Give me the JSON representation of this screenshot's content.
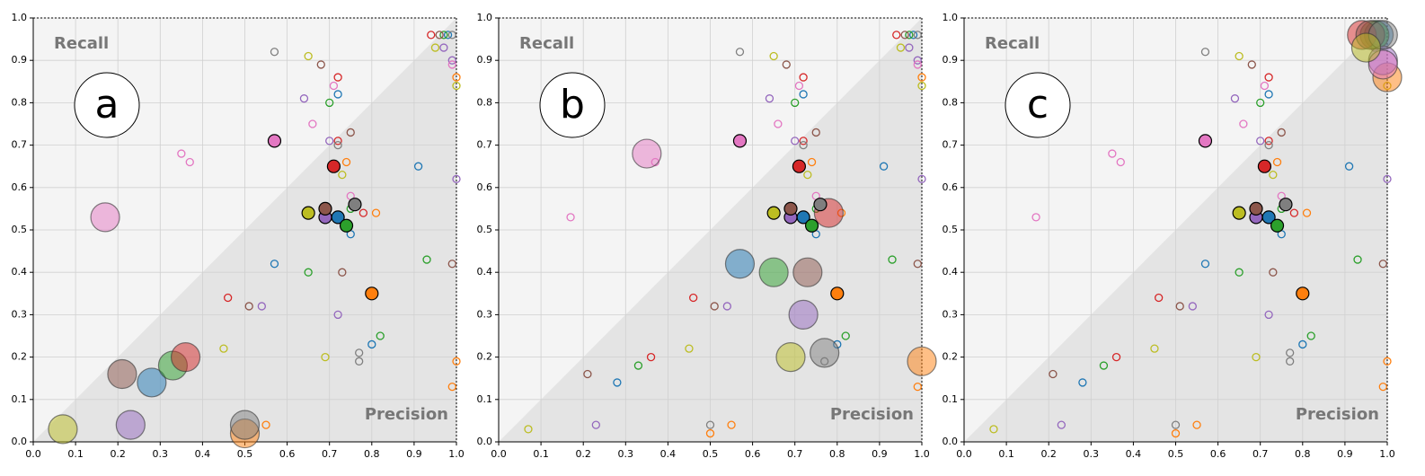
{
  "chart_data": [
    {
      "type": "scatter",
      "label": "a",
      "annotations": [
        "Recall",
        "Precision"
      ],
      "xlim": [
        0,
        1
      ],
      "ylim": [
        0,
        1
      ],
      "xticks": [
        {
          "value": 0,
          "label": "0.0"
        },
        0.1,
        0.2,
        0.3,
        0.4,
        0.5,
        0.6,
        0.7,
        0.8,
        0.9,
        {
          "value": 1,
          "label": "1.0"
        }
      ],
      "yticks": [
        {
          "value": 0,
          "label": "0.0"
        },
        0.1,
        0.2,
        0.3,
        0.4,
        0.5,
        0.6,
        0.7,
        0.8,
        0.9,
        {
          "value": 1,
          "label": "1.0"
        }
      ],
      "grid": true,
      "x": [
        0.57,
        0.65,
        0.68,
        0.72,
        0.71,
        0.72,
        0.7,
        0.64,
        0.66,
        0.75,
        0.7,
        0.72,
        0.72,
        0.37,
        0.74,
        0.73,
        0.91,
        0.75,
        0.81,
        0.75,
        0.75,
        1.0,
        0.93,
        0.99,
        0.46,
        0.51,
        0.54,
        0.45,
        0.77,
        0.8,
        0.82,
        0.99,
        0.55,
        0.97,
        1.0,
        0.28,
        0.5,
        0.33,
        0.36,
        0.23,
        0.21,
        0.17,
        0.5,
        0.07,
        0.57,
        1.0,
        0.65,
        0.78,
        0.72,
        0.73,
        0.35,
        0.77,
        0.69,
        0.98,
        1.0,
        0.97,
        0.94,
        0.99,
        0.96,
        0.99,
        0.99,
        0.95,
        0.72,
        0.8,
        0.74,
        0.71,
        0.69,
        0.69,
        0.57,
        0.76,
        0.65
      ],
      "y": [
        0.92,
        0.91,
        0.89,
        0.86,
        0.84,
        0.82,
        0.8,
        0.81,
        0.75,
        0.73,
        0.71,
        0.71,
        0.7,
        0.66,
        0.66,
        0.63,
        0.65,
        0.58,
        0.54,
        0.55,
        0.49,
        0.62,
        0.43,
        0.42,
        0.34,
        0.32,
        0.32,
        0.22,
        0.19,
        0.23,
        0.25,
        0.13,
        0.04,
        0.93,
        0.84,
        0.14,
        0.02,
        0.18,
        0.2,
        0.04,
        0.16,
        0.53,
        0.04,
        0.03,
        0.42,
        0.19,
        0.4,
        0.54,
        0.3,
        0.4,
        0.68,
        0.21,
        0.2,
        0.96,
        0.86,
        0.96,
        0.96,
        0.9,
        0.96,
        0.89,
        0.96,
        0.93,
        0.53,
        0.35,
        0.51,
        0.65,
        0.53,
        0.55,
        0.71,
        0.56,
        0.54
      ],
      "sizes": [
        4,
        4,
        4,
        4,
        4,
        4,
        4,
        4,
        4,
        4,
        4,
        4,
        4,
        4,
        4,
        4,
        4,
        4,
        4,
        4,
        4,
        4,
        4,
        4,
        4,
        4,
        4,
        4,
        4,
        4,
        4,
        4,
        4,
        4,
        4,
        16,
        16,
        16,
        16,
        16,
        16,
        16,
        16,
        16,
        4,
        4,
        4,
        4,
        4,
        4,
        4,
        4,
        4,
        4,
        4,
        4,
        4,
        4,
        4,
        4,
        4,
        4,
        7,
        7,
        7,
        7,
        7,
        7,
        7,
        7,
        7
      ],
      "colors": [
        "#7f7f7f",
        "#bcbd22",
        "#8c564b",
        "#d62728",
        "#e377c2",
        "#1f77b4",
        "#2ca02c",
        "#9467bd",
        "#e377c2",
        "#8c564b",
        "#9467bd",
        "#d62728",
        "#7f7f7f",
        "#e377c2",
        "#ff7f0e",
        "#bcbd22",
        "#1f77b4",
        "#e377c2",
        "#ff7f0e",
        "#2ca02c",
        "#1f77b4",
        "#9467bd",
        "#2ca02c",
        "#8c564b",
        "#d62728",
        "#8c564b",
        "#9467bd",
        "#bcbd22",
        "#7f7f7f",
        "#1f77b4",
        "#2ca02c",
        "#ff7f0e",
        "#ff7f0e",
        "#9467bd",
        "#bcbd22",
        "#1f77b4",
        "#ff7f0e",
        "#2ca02c",
        "#d62728",
        "#9467bd",
        "#8c564b",
        "#e377c2",
        "#7f7f7f",
        "#bcbd22",
        "#1f77b4",
        "#ff7f0e",
        "#2ca02c",
        "#d62728",
        "#9467bd",
        "#8c564b",
        "#e377c2",
        "#7f7f7f",
        "#bcbd22",
        "#1f77b4",
        "#ff7f0e",
        "#2ca02c",
        "#d62728",
        "#9467bd",
        "#8c564b",
        "#e377c2",
        "#7f7f7f",
        "#bcbd22",
        "#1f77b4",
        "#ff7f0e",
        "#2ca02c",
        "#d62728",
        "#9467bd",
        "#8c564b",
        "#e377c2",
        "#7f7f7f",
        "#bcbd22"
      ]
    },
    {
      "type": "scatter",
      "label": "b",
      "annotations": [
        "Recall",
        "Precision"
      ],
      "xlim": [
        0,
        1
      ],
      "ylim": [
        0,
        1
      ],
      "xticks": [
        {
          "value": 0,
          "label": "0.0"
        },
        0.1,
        0.2,
        0.3,
        0.4,
        0.5,
        0.6,
        0.7,
        0.8,
        0.9,
        {
          "value": 1,
          "label": "1.0"
        }
      ],
      "yticks": [
        {
          "value": 0,
          "label": "0.0"
        },
        0.1,
        0.2,
        0.3,
        0.4,
        0.5,
        0.6,
        0.7,
        0.8,
        0.9,
        {
          "value": 1,
          "label": "1.0"
        }
      ],
      "grid": true,
      "x": [
        0.57,
        0.65,
        0.68,
        0.72,
        0.71,
        0.72,
        0.7,
        0.64,
        0.66,
        0.75,
        0.7,
        0.72,
        0.72,
        0.37,
        0.74,
        0.73,
        0.91,
        0.75,
        0.81,
        0.75,
        0.75,
        1.0,
        0.93,
        0.99,
        0.46,
        0.51,
        0.54,
        0.45,
        0.77,
        0.8,
        0.82,
        0.99,
        0.55,
        0.97,
        1.0,
        0.28,
        0.5,
        0.33,
        0.36,
        0.23,
        0.21,
        0.17,
        0.5,
        0.07,
        0.57,
        1.0,
        0.65,
        0.78,
        0.72,
        0.73,
        0.35,
        0.77,
        0.69,
        0.98,
        1.0,
        0.97,
        0.94,
        0.99,
        0.96,
        0.99,
        0.99,
        0.95,
        0.72,
        0.8,
        0.74,
        0.71,
        0.69,
        0.69,
        0.57,
        0.76,
        0.65
      ],
      "y": [
        0.92,
        0.91,
        0.89,
        0.86,
        0.84,
        0.82,
        0.8,
        0.81,
        0.75,
        0.73,
        0.71,
        0.71,
        0.7,
        0.66,
        0.66,
        0.63,
        0.65,
        0.58,
        0.54,
        0.55,
        0.49,
        0.62,
        0.43,
        0.42,
        0.34,
        0.32,
        0.32,
        0.22,
        0.19,
        0.23,
        0.25,
        0.13,
        0.04,
        0.93,
        0.84,
        0.14,
        0.02,
        0.18,
        0.2,
        0.04,
        0.16,
        0.53,
        0.04,
        0.03,
        0.42,
        0.19,
        0.4,
        0.54,
        0.3,
        0.4,
        0.68,
        0.21,
        0.2,
        0.96,
        0.86,
        0.96,
        0.96,
        0.9,
        0.96,
        0.89,
        0.96,
        0.93,
        0.53,
        0.35,
        0.51,
        0.65,
        0.53,
        0.55,
        0.71,
        0.56,
        0.54
      ],
      "sizes": [
        4,
        4,
        4,
        4,
        4,
        4,
        4,
        4,
        4,
        4,
        4,
        4,
        4,
        4,
        4,
        4,
        4,
        4,
        4,
        4,
        4,
        4,
        4,
        4,
        4,
        4,
        4,
        4,
        4,
        4,
        4,
        4,
        4,
        4,
        4,
        4,
        4,
        4,
        4,
        4,
        4,
        4,
        4,
        4,
        16,
        16,
        16,
        16,
        16,
        16,
        16,
        16,
        16,
        4,
        4,
        4,
        4,
        4,
        4,
        4,
        4,
        4,
        7,
        7,
        7,
        7,
        7,
        7,
        7,
        7,
        7
      ],
      "colors": [
        "#7f7f7f",
        "#bcbd22",
        "#8c564b",
        "#d62728",
        "#e377c2",
        "#1f77b4",
        "#2ca02c",
        "#9467bd",
        "#e377c2",
        "#8c564b",
        "#9467bd",
        "#d62728",
        "#7f7f7f",
        "#e377c2",
        "#ff7f0e",
        "#bcbd22",
        "#1f77b4",
        "#e377c2",
        "#ff7f0e",
        "#2ca02c",
        "#1f77b4",
        "#9467bd",
        "#2ca02c",
        "#8c564b",
        "#d62728",
        "#8c564b",
        "#9467bd",
        "#bcbd22",
        "#7f7f7f",
        "#1f77b4",
        "#2ca02c",
        "#ff7f0e",
        "#ff7f0e",
        "#9467bd",
        "#bcbd22",
        "#1f77b4",
        "#ff7f0e",
        "#2ca02c",
        "#d62728",
        "#9467bd",
        "#8c564b",
        "#e377c2",
        "#7f7f7f",
        "#bcbd22",
        "#1f77b4",
        "#ff7f0e",
        "#2ca02c",
        "#d62728",
        "#9467bd",
        "#8c564b",
        "#e377c2",
        "#7f7f7f",
        "#bcbd22",
        "#1f77b4",
        "#ff7f0e",
        "#2ca02c",
        "#d62728",
        "#9467bd",
        "#8c564b",
        "#e377c2",
        "#7f7f7f",
        "#bcbd22",
        "#1f77b4",
        "#ff7f0e",
        "#2ca02c",
        "#d62728",
        "#9467bd",
        "#8c564b",
        "#e377c2",
        "#7f7f7f",
        "#bcbd22"
      ]
    },
    {
      "type": "scatter",
      "label": "c",
      "annotations": [
        "Recall",
        "Precision"
      ],
      "xlim": [
        0,
        1
      ],
      "ylim": [
        0,
        1
      ],
      "xticks": [
        {
          "value": 0,
          "label": "0.0"
        },
        0.1,
        0.2,
        0.3,
        0.4,
        0.5,
        0.6,
        0.7,
        0.8,
        0.9,
        {
          "value": 1,
          "label": "1.0"
        }
      ],
      "yticks": [
        {
          "value": 0,
          "label": "0.0"
        },
        0.1,
        0.2,
        0.3,
        0.4,
        0.5,
        0.6,
        0.7,
        0.8,
        0.9,
        {
          "value": 1,
          "label": "1.0"
        }
      ],
      "grid": true,
      "x": [
        0.57,
        0.65,
        0.68,
        0.72,
        0.71,
        0.72,
        0.7,
        0.64,
        0.66,
        0.75,
        0.7,
        0.72,
        0.72,
        0.37,
        0.74,
        0.73,
        0.91,
        0.75,
        0.81,
        0.75,
        0.75,
        1.0,
        0.93,
        0.99,
        0.46,
        0.51,
        0.54,
        0.45,
        0.77,
        0.8,
        0.82,
        0.99,
        0.55,
        0.97,
        1.0,
        0.28,
        0.5,
        0.33,
        0.36,
        0.23,
        0.21,
        0.17,
        0.5,
        0.07,
        0.57,
        1.0,
        0.65,
        0.78,
        0.72,
        0.73,
        0.35,
        0.77,
        0.69,
        0.98,
        1.0,
        0.97,
        0.94,
        0.99,
        0.96,
        0.99,
        0.99,
        0.95,
        0.72,
        0.8,
        0.74,
        0.71,
        0.69,
        0.69,
        0.57,
        0.76,
        0.65
      ],
      "y": [
        0.92,
        0.91,
        0.89,
        0.86,
        0.84,
        0.82,
        0.8,
        0.81,
        0.75,
        0.73,
        0.71,
        0.71,
        0.7,
        0.66,
        0.66,
        0.63,
        0.65,
        0.58,
        0.54,
        0.55,
        0.49,
        0.62,
        0.43,
        0.42,
        0.34,
        0.32,
        0.32,
        0.22,
        0.19,
        0.23,
        0.25,
        0.13,
        0.04,
        0.93,
        0.84,
        0.14,
        0.02,
        0.18,
        0.2,
        0.04,
        0.16,
        0.53,
        0.04,
        0.03,
        0.42,
        0.19,
        0.4,
        0.54,
        0.3,
        0.4,
        0.68,
        0.21,
        0.2,
        0.96,
        0.86,
        0.96,
        0.96,
        0.9,
        0.96,
        0.89,
        0.96,
        0.93,
        0.53,
        0.35,
        0.51,
        0.65,
        0.53,
        0.55,
        0.71,
        0.56,
        0.54
      ],
      "sizes": [
        4,
        4,
        4,
        4,
        4,
        4,
        4,
        4,
        4,
        4,
        4,
        4,
        4,
        4,
        4,
        4,
        4,
        4,
        4,
        4,
        4,
        4,
        4,
        4,
        4,
        4,
        4,
        4,
        4,
        4,
        4,
        4,
        4,
        4,
        4,
        4,
        4,
        4,
        4,
        4,
        4,
        4,
        4,
        4,
        4,
        4,
        4,
        4,
        4,
        4,
        4,
        4,
        4,
        16,
        16,
        16,
        16,
        16,
        16,
        16,
        16,
        16,
        7,
        7,
        7,
        7,
        7,
        7,
        7,
        7,
        7
      ],
      "colors": [
        "#7f7f7f",
        "#bcbd22",
        "#8c564b",
        "#d62728",
        "#e377c2",
        "#1f77b4",
        "#2ca02c",
        "#9467bd",
        "#e377c2",
        "#8c564b",
        "#9467bd",
        "#d62728",
        "#7f7f7f",
        "#e377c2",
        "#ff7f0e",
        "#bcbd22",
        "#1f77b4",
        "#e377c2",
        "#ff7f0e",
        "#2ca02c",
        "#1f77b4",
        "#9467bd",
        "#2ca02c",
        "#8c564b",
        "#d62728",
        "#8c564b",
        "#9467bd",
        "#bcbd22",
        "#7f7f7f",
        "#1f77b4",
        "#2ca02c",
        "#ff7f0e",
        "#ff7f0e",
        "#9467bd",
        "#bcbd22",
        "#1f77b4",
        "#ff7f0e",
        "#2ca02c",
        "#d62728",
        "#9467bd",
        "#8c564b",
        "#e377c2",
        "#7f7f7f",
        "#bcbd22",
        "#1f77b4",
        "#ff7f0e",
        "#2ca02c",
        "#d62728",
        "#9467bd",
        "#8c564b",
        "#e377c2",
        "#7f7f7f",
        "#bcbd22",
        "#1f77b4",
        "#ff7f0e",
        "#2ca02c",
        "#d62728",
        "#9467bd",
        "#8c564b",
        "#e377c2",
        "#7f7f7f",
        "#bcbd22",
        "#1f77b4",
        "#ff7f0e",
        "#2ca02c",
        "#d62728",
        "#9467bd",
        "#8c564b",
        "#e377c2",
        "#7f7f7f",
        "#bcbd22"
      ]
    }
  ]
}
